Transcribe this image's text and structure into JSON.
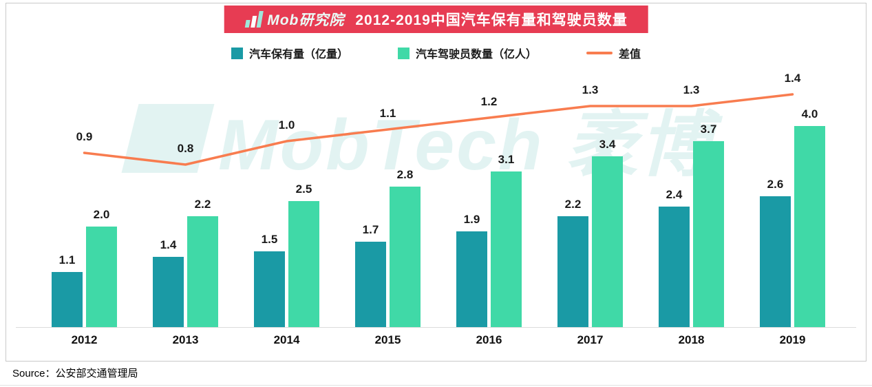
{
  "header": {
    "logo_text": "Mob研究院",
    "title": "2012-2019中国汽车保有量和驾驶员数量"
  },
  "legend": [
    {
      "label": "汽车保有量（亿量）",
      "marker": "square",
      "color": "#1a9aa5"
    },
    {
      "label": "汽车驾驶员数量（亿人）",
      "marker": "square",
      "color": "#40d9a7"
    },
    {
      "label": "差值",
      "marker": "line",
      "color": "#f87c4f"
    }
  ],
  "watermark": "MobTech 袤博",
  "source": "Source：公安部交通管理局",
  "colors": {
    "header_red": "#e73c53",
    "bar_teal": "#1a9aa5",
    "bar_green": "#40d9a7",
    "line_orange": "#f87c4f"
  },
  "chart_data": {
    "type": "bar",
    "subtype": "grouped bars with secondary-axis line overlay",
    "title": "2012-2019中国汽车保有量和驾驶员数量",
    "categories": [
      "2012",
      "2013",
      "2014",
      "2015",
      "2016",
      "2017",
      "2018",
      "2019"
    ],
    "series": [
      {
        "name": "汽车保有量（亿量）",
        "type": "bar",
        "color": "#1a9aa5",
        "values": [
          1.1,
          1.4,
          1.5,
          1.7,
          1.9,
          2.2,
          2.4,
          2.6
        ]
      },
      {
        "name": "汽车驾驶员数量（亿人）",
        "type": "bar",
        "color": "#40d9a7",
        "values": [
          2.0,
          2.2,
          2.5,
          2.8,
          3.1,
          3.4,
          3.7,
          4.0
        ]
      },
      {
        "name": "差值",
        "type": "line",
        "color": "#f87c4f",
        "values": [
          0.9,
          0.8,
          1.0,
          1.1,
          1.2,
          1.3,
          1.3,
          1.4
        ]
      }
    ],
    "xlabel": "",
    "ylabel": "",
    "bar_ylim": [
      0,
      4.4
    ],
    "line_ylim": [
      0,
      2.0
    ],
    "grid": false,
    "axes_labeled": false,
    "data_labels": true,
    "legend_position": "top"
  }
}
